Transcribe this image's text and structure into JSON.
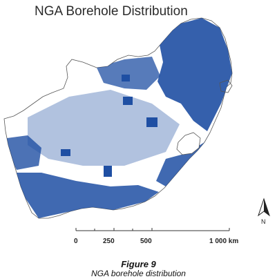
{
  "map": {
    "title": "NGA Borehole Distribution",
    "point_color": "#1f4fa3",
    "outline_color": "#555555"
  },
  "north": {
    "label": "N"
  },
  "scale_bar": {
    "unit": "km",
    "ticks": [
      {
        "value": 0,
        "label": "0"
      },
      {
        "value": 250,
        "label": "250"
      },
      {
        "value": 500,
        "label": "500"
      },
      {
        "value": 1000,
        "label": "1 000 km"
      }
    ]
  },
  "figure": {
    "number": "Figure 9",
    "caption": "NGA borehole distribution"
  }
}
